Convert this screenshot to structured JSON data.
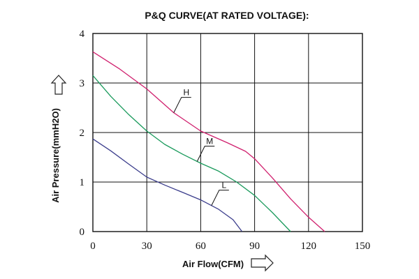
{
  "chart_data": {
    "type": "line",
    "title": "P&Q CURVE(AT RATED VOLTAGE):",
    "xlabel": "Air Flow(CFM)",
    "ylabel": "Air Pressure(mmH2O)",
    "xlim": [
      0,
      150
    ],
    "ylim": [
      0,
      4
    ],
    "xticks": [
      "0",
      "30",
      "60",
      "90",
      "120",
      "150"
    ],
    "yticks": [
      "0",
      "1",
      "2",
      "3",
      "4"
    ],
    "grid": true,
    "series": [
      {
        "name": "H",
        "color": "#d0206e",
        "x": [
          0,
          15,
          30,
          45,
          60,
          75,
          85,
          90,
          100,
          110,
          120,
          129
        ],
        "y": [
          3.63,
          3.28,
          2.88,
          2.4,
          2.03,
          1.79,
          1.62,
          1.47,
          1.08,
          0.66,
          0.29,
          0
        ]
      },
      {
        "name": "M",
        "color": "#1a9a5c",
        "x": [
          0,
          10,
          20,
          30,
          40,
          50,
          60,
          70,
          80,
          90,
          100,
          110
        ],
        "y": [
          3.15,
          2.73,
          2.36,
          2.03,
          1.76,
          1.56,
          1.38,
          1.22,
          1.0,
          0.73,
          0.38,
          0
        ]
      },
      {
        "name": "L",
        "color": "#3b3d8c",
        "x": [
          0,
          10,
          20,
          30,
          40,
          50,
          60,
          70,
          78,
          83
        ],
        "y": [
          1.87,
          1.63,
          1.36,
          1.1,
          0.94,
          0.79,
          0.64,
          0.45,
          0.24,
          0
        ]
      }
    ]
  }
}
